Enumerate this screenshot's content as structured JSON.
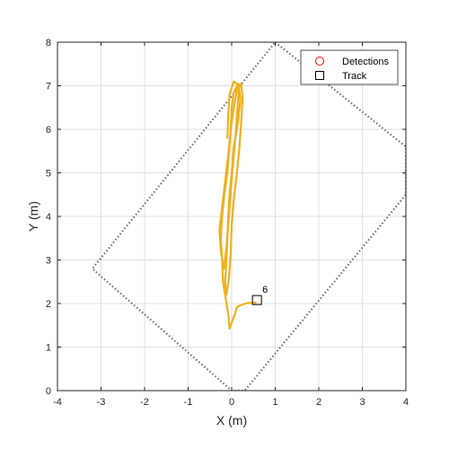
{
  "chart_data": {
    "type": "line",
    "title": "",
    "xlabel": "X (m)",
    "ylabel": "Y (m)",
    "xlim": [
      -4,
      4
    ],
    "ylim": [
      0,
      8
    ],
    "xticks": [
      "-4",
      "-3",
      "-2",
      "-1",
      "0",
      "1",
      "2",
      "3",
      "4"
    ],
    "yticks": [
      "0",
      "1",
      "2",
      "3",
      "4",
      "5",
      "6",
      "7",
      "8"
    ],
    "grid": true,
    "legend_position": "top-right",
    "legend": [
      {
        "name": "Detections",
        "marker": "circle",
        "color": "#ff0000"
      },
      {
        "name": "Track",
        "marker": "square",
        "color": "#000000"
      }
    ],
    "track_color": "#edb120",
    "sensor_boundary_color": "#777777",
    "sensor_boundary": [
      {
        "x": 1.0,
        "y": 8.0
      },
      {
        "x": 4.0,
        "y": 5.6
      },
      {
        "x": 4.0,
        "y": 4.5
      },
      {
        "x": 0.3,
        "y": 0.0
      },
      {
        "x": 0.0,
        "y": 0.0
      },
      {
        "x": -3.2,
        "y": 2.8
      },
      {
        "x": 1.0,
        "y": 8.0
      }
    ],
    "track_history": [
      {
        "x": 0.55,
        "y": 2.02
      },
      {
        "x": 0.35,
        "y": 2.01
      },
      {
        "x": 0.2,
        "y": 1.96
      },
      {
        "x": 0.12,
        "y": 1.92
      },
      {
        "x": 0.08,
        "y": 1.78
      },
      {
        "x": 0.02,
        "y": 1.62
      },
      {
        "x": -0.05,
        "y": 1.42
      },
      {
        "x": -0.07,
        "y": 1.7
      },
      {
        "x": -0.12,
        "y": 2.0
      },
      {
        "x": -0.2,
        "y": 2.5
      },
      {
        "x": -0.22,
        "y": 3.0
      },
      {
        "x": -0.25,
        "y": 3.5
      },
      {
        "x": -0.22,
        "y": 4.0
      },
      {
        "x": -0.17,
        "y": 4.5
      },
      {
        "x": -0.1,
        "y": 5.0
      },
      {
        "x": -0.06,
        "y": 5.5
      },
      {
        "x": -0.02,
        "y": 6.0
      },
      {
        "x": 0.0,
        "y": 6.5
      },
      {
        "x": 0.05,
        "y": 6.85
      },
      {
        "x": 0.15,
        "y": 7.05
      },
      {
        "x": 0.2,
        "y": 6.7
      },
      {
        "x": 0.15,
        "y": 6.2
      },
      {
        "x": 0.05,
        "y": 5.6
      },
      {
        "x": 0.0,
        "y": 5.0
      },
      {
        "x": -0.05,
        "y": 4.5
      },
      {
        "x": -0.08,
        "y": 4.0
      },
      {
        "x": -0.1,
        "y": 3.5
      },
      {
        "x": -0.12,
        "y": 3.0
      },
      {
        "x": -0.15,
        "y": 2.5
      },
      {
        "x": -0.12,
        "y": 2.2
      },
      {
        "x": -0.06,
        "y": 2.6
      },
      {
        "x": -0.02,
        "y": 3.2
      },
      {
        "x": 0.0,
        "y": 3.8
      },
      {
        "x": 0.05,
        "y": 4.4
      },
      {
        "x": 0.12,
        "y": 5.0
      },
      {
        "x": 0.18,
        "y": 5.6
      },
      {
        "x": 0.22,
        "y": 6.2
      },
      {
        "x": 0.25,
        "y": 6.7
      },
      {
        "x": 0.22,
        "y": 7.05
      },
      {
        "x": 0.12,
        "y": 6.9
      },
      {
        "x": 0.05,
        "y": 6.5
      },
      {
        "x": -0.02,
        "y": 6.0
      },
      {
        "x": -0.08,
        "y": 5.4
      },
      {
        "x": -0.15,
        "y": 4.8
      },
      {
        "x": -0.22,
        "y": 4.2
      },
      {
        "x": -0.28,
        "y": 3.7
      },
      {
        "x": -0.25,
        "y": 3.2
      },
      {
        "x": -0.18,
        "y": 2.8
      },
      {
        "x": -0.12,
        "y": 3.3
      },
      {
        "x": -0.07,
        "y": 3.9
      },
      {
        "x": -0.02,
        "y": 4.6
      },
      {
        "x": 0.04,
        "y": 5.3
      },
      {
        "x": 0.1,
        "y": 6.0
      },
      {
        "x": 0.14,
        "y": 6.6
      },
      {
        "x": 0.18,
        "y": 7.0
      },
      {
        "x": 0.05,
        "y": 7.1
      },
      {
        "x": -0.05,
        "y": 6.8
      },
      {
        "x": -0.08,
        "y": 6.3
      },
      {
        "x": -0.1,
        "y": 5.8
      }
    ],
    "tracks": [
      {
        "id": "6",
        "x": 0.58,
        "y": 2.08
      }
    ],
    "detections": []
  }
}
